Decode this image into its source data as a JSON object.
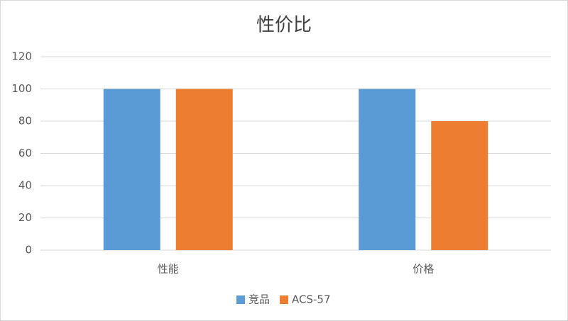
{
  "chart_data": {
    "type": "bar",
    "title": "性价比",
    "categories": [
      "性能",
      "价格"
    ],
    "series": [
      {
        "name": "竞品",
        "color": "#5b9bd5",
        "values": [
          100,
          100
        ]
      },
      {
        "name": "ACS-57",
        "color": "#ed7d31",
        "values": [
          100,
          80
        ]
      }
    ],
    "ylim": [
      0,
      120
    ],
    "yticks": [
      0,
      20,
      40,
      60,
      80,
      100,
      120
    ],
    "grid": true,
    "legend": "bottom"
  }
}
